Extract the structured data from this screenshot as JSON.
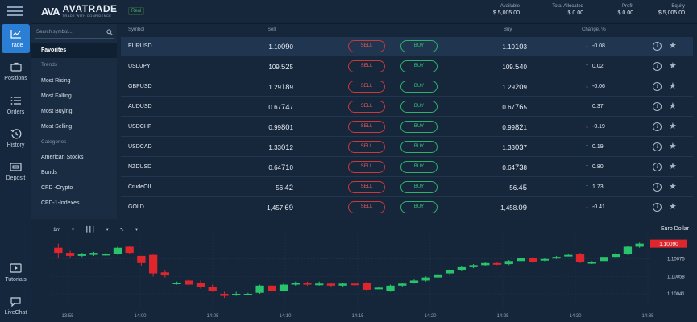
{
  "nav": {
    "items": [
      {
        "label": "Trade",
        "icon": "chart-icon",
        "active": true
      },
      {
        "label": "Positions",
        "icon": "briefcase-icon"
      },
      {
        "label": "Orders",
        "icon": "list-icon"
      },
      {
        "label": "History",
        "icon": "history-icon"
      },
      {
        "label": "Deposit",
        "icon": "wallet-icon"
      },
      {
        "label": "Tutorials",
        "icon": "video-icon"
      },
      {
        "label": "LiveChat",
        "icon": "chat-icon"
      }
    ]
  },
  "header": {
    "brand": "AVATRADE",
    "brand_mark": "AVA",
    "tagline": "TRADE WITH CONFIDENCE",
    "mode": "Real",
    "stats": [
      {
        "label": "Available",
        "value": "$ 5,005.00"
      },
      {
        "label": "Total Allocated",
        "value": "$ 0.00"
      },
      {
        "label": "Profit",
        "value": "$ 0.00"
      },
      {
        "label": "Equity",
        "value": "$ 5,005.00"
      }
    ]
  },
  "sidebar": {
    "search_placeholder": "Search symbol...",
    "favorites": "Favorites",
    "trends_header": "Trends",
    "trends": [
      "Most Rising",
      "Most Falling",
      "Most Buying",
      "Most Selling"
    ],
    "categories_header": "Categories",
    "categories": [
      "American Stocks",
      "Bonds",
      "CFD -Crypto",
      "CFD-1-Indexes"
    ]
  },
  "table": {
    "columns": {
      "symbol": "Symbol",
      "sell": "Sell",
      "buy": "Buy",
      "change": "Change, %"
    },
    "sell_label": "SELL",
    "buy_label": "BUY",
    "rows": [
      {
        "symbol": "EURUSD",
        "sell_a": "1.10",
        "sell_b": "09",
        "sell_c": "0",
        "buy_a": "1.10",
        "buy_b": "10",
        "buy_c": "3",
        "dir": "down",
        "change": "-0.08"
      },
      {
        "symbol": "USDJPY",
        "sell_a": "109.",
        "sell_b": "52",
        "sell_c": "5",
        "buy_a": "109.",
        "buy_b": "54",
        "buy_c": "0",
        "dir": "up",
        "change": "0.02"
      },
      {
        "symbol": "GBPUSD",
        "sell_a": "1.29",
        "sell_b": "18",
        "sell_c": "9",
        "buy_a": "1.29",
        "buy_b": "20",
        "buy_c": "9",
        "dir": "down",
        "change": "-0.06"
      },
      {
        "symbol": "AUDUSD",
        "sell_a": "0.67",
        "sell_b": "74",
        "sell_c": "7",
        "buy_a": "0.67",
        "buy_b": "76",
        "buy_c": "5",
        "dir": "up",
        "change": "0.37"
      },
      {
        "symbol": "USDCHF",
        "sell_a": "0.99",
        "sell_b": "80",
        "sell_c": "1",
        "buy_a": "0.99",
        "buy_b": "82",
        "buy_c": "1",
        "dir": "down",
        "change": "-0.19"
      },
      {
        "symbol": "USDCAD",
        "sell_a": "1.33",
        "sell_b": "01",
        "sell_c": "2",
        "buy_a": "1.33",
        "buy_b": "03",
        "buy_c": "7",
        "dir": "up",
        "change": "0.19"
      },
      {
        "symbol": "NZDUSD",
        "sell_a": "0.64",
        "sell_b": "71",
        "sell_c": "0",
        "buy_a": "0.64",
        "buy_b": "73",
        "buy_c": "8",
        "dir": "up",
        "change": "0.80"
      },
      {
        "symbol": "CrudeOIL",
        "sell_a": "56.",
        "sell_b": "42",
        "sell_c": "",
        "buy_a": "56.",
        "buy_b": "45",
        "buy_c": "",
        "dir": "up",
        "change": "1.73"
      },
      {
        "symbol": "GOLD",
        "sell_a": "1,457.",
        "sell_b": "69",
        "sell_c": "",
        "buy_a": "1,458.",
        "buy_b": "09",
        "buy_c": "",
        "dir": "down",
        "change": "-0.41"
      }
    ]
  },
  "chart": {
    "timeframe": "1m",
    "title": "Euro Dollar",
    "price_tag": "1.10090",
    "colors": {
      "up": "#27c46b",
      "down": "#e0262d"
    }
  },
  "chart_data": {
    "type": "candlestick",
    "x_ticks": [
      "13:55",
      "14:00",
      "14:05",
      "14:10",
      "14:15",
      "14:20",
      "14:25",
      "14:30",
      "14:35"
    ],
    "y_ticks": [
      1.10075,
      1.10058,
      1.10041
    ],
    "ylim": [
      1.1003,
      1.10096
    ],
    "candles": [
      {
        "o": 1.10086,
        "c": 1.10081,
        "h": 1.1009,
        "l": 1.10076
      },
      {
        "o": 1.10081,
        "c": 1.10078,
        "h": 1.10083,
        "l": 1.10076
      },
      {
        "o": 1.10078,
        "c": 1.1008,
        "h": 1.10081,
        "l": 1.10077
      },
      {
        "o": 1.10079,
        "c": 1.10081,
        "h": 1.10082,
        "l": 1.10078
      },
      {
        "o": 1.10079,
        "c": 1.1008,
        "h": 1.10081,
        "l": 1.10078
      },
      {
        "o": 1.1008,
        "c": 1.10086,
        "h": 1.10087,
        "l": 1.10079
      },
      {
        "o": 1.10087,
        "c": 1.10081,
        "h": 1.10088,
        "l": 1.1008
      },
      {
        "o": 1.10078,
        "c": 1.10071,
        "h": 1.10078,
        "l": 1.10068
      },
      {
        "o": 1.10079,
        "c": 1.10061,
        "h": 1.1008,
        "l": 1.10058
      },
      {
        "o": 1.10062,
        "c": 1.10059,
        "h": 1.10064,
        "l": 1.10057
      },
      {
        "o": 1.10051,
        "c": 1.10052,
        "h": 1.10053,
        "l": 1.1005
      },
      {
        "o": 1.10054,
        "c": 1.1005,
        "h": 1.10056,
        "l": 1.10049
      },
      {
        "o": 1.10052,
        "c": 1.10048,
        "h": 1.10054,
        "l": 1.10046
      },
      {
        "o": 1.10048,
        "c": 1.10044,
        "h": 1.1005,
        "l": 1.10043
      },
      {
        "o": 1.10041,
        "c": 1.10039,
        "h": 1.10043,
        "l": 1.10037
      },
      {
        "o": 1.1004,
        "c": 1.10041,
        "h": 1.10043,
        "l": 1.10039
      },
      {
        "o": 1.1004,
        "c": 1.10041,
        "h": 1.10042,
        "l": 1.1004
      },
      {
        "o": 1.10042,
        "c": 1.10049,
        "h": 1.1005,
        "l": 1.10041
      },
      {
        "o": 1.10049,
        "c": 1.10044,
        "h": 1.1005,
        "l": 1.10043
      },
      {
        "o": 1.10044,
        "c": 1.1005,
        "h": 1.10051,
        "l": 1.10043
      },
      {
        "o": 1.1005,
        "c": 1.10052,
        "h": 1.10053,
        "l": 1.10049
      },
      {
        "o": 1.10052,
        "c": 1.1005,
        "h": 1.10053,
        "l": 1.10049
      },
      {
        "o": 1.1005,
        "c": 1.10051,
        "h": 1.10053,
        "l": 1.10049
      },
      {
        "o": 1.10051,
        "c": 1.10049,
        "h": 1.10052,
        "l": 1.10048
      },
      {
        "o": 1.10049,
        "c": 1.10051,
        "h": 1.10052,
        "l": 1.10048
      },
      {
        "o": 1.10051,
        "c": 1.1005,
        "h": 1.10052,
        "l": 1.10049
      },
      {
        "o": 1.10052,
        "c": 1.10045,
        "h": 1.10053,
        "l": 1.10044
      },
      {
        "o": 1.10047,
        "c": 1.10047,
        "h": 1.10048,
        "l": 1.10046
      },
      {
        "o": 1.10044,
        "c": 1.10049,
        "h": 1.1005,
        "l": 1.10043
      },
      {
        "o": 1.10049,
        "c": 1.10051,
        "h": 1.10052,
        "l": 1.10048
      },
      {
        "o": 1.10052,
        "c": 1.10054,
        "h": 1.10055,
        "l": 1.10051
      },
      {
        "o": 1.10054,
        "c": 1.10057,
        "h": 1.10058,
        "l": 1.10053
      },
      {
        "o": 1.10057,
        "c": 1.1006,
        "h": 1.10061,
        "l": 1.10056
      },
      {
        "o": 1.10061,
        "c": 1.10064,
        "h": 1.10065,
        "l": 1.1006
      },
      {
        "o": 1.10064,
        "c": 1.10067,
        "h": 1.10068,
        "l": 1.10063
      },
      {
        "o": 1.10067,
        "c": 1.10069,
        "h": 1.1007,
        "l": 1.10066
      },
      {
        "o": 1.10069,
        "c": 1.10071,
        "h": 1.10072,
        "l": 1.10068
      },
      {
        "o": 1.10071,
        "c": 1.1007,
        "h": 1.10072,
        "l": 1.10069
      },
      {
        "o": 1.1007,
        "c": 1.10073,
        "h": 1.10074,
        "l": 1.10069
      },
      {
        "o": 1.10073,
        "c": 1.10076,
        "h": 1.10077,
        "l": 1.10072
      },
      {
        "o": 1.10076,
        "c": 1.10072,
        "h": 1.10077,
        "l": 1.10071
      },
      {
        "o": 1.10074,
        "c": 1.10075,
        "h": 1.10076,
        "l": 1.10073
      },
      {
        "o": 1.10076,
        "c": 1.10077,
        "h": 1.10078,
        "l": 1.10075
      },
      {
        "o": 1.10079,
        "c": 1.10079,
        "h": 1.1008,
        "l": 1.10078
      },
      {
        "o": 1.1008,
        "c": 1.10072,
        "h": 1.10081,
        "l": 1.10071
      },
      {
        "o": 1.10071,
        "c": 1.10072,
        "h": 1.10073,
        "l": 1.1007
      },
      {
        "o": 1.10073,
        "c": 1.10077,
        "h": 1.10078,
        "l": 1.10072
      },
      {
        "o": 1.10077,
        "c": 1.1008,
        "h": 1.10081,
        "l": 1.10076
      },
      {
        "o": 1.1008,
        "c": 1.10087,
        "h": 1.10088,
        "l": 1.10079
      },
      {
        "o": 1.10087,
        "c": 1.1009,
        "h": 1.10091,
        "l": 1.10086
      }
    ]
  }
}
